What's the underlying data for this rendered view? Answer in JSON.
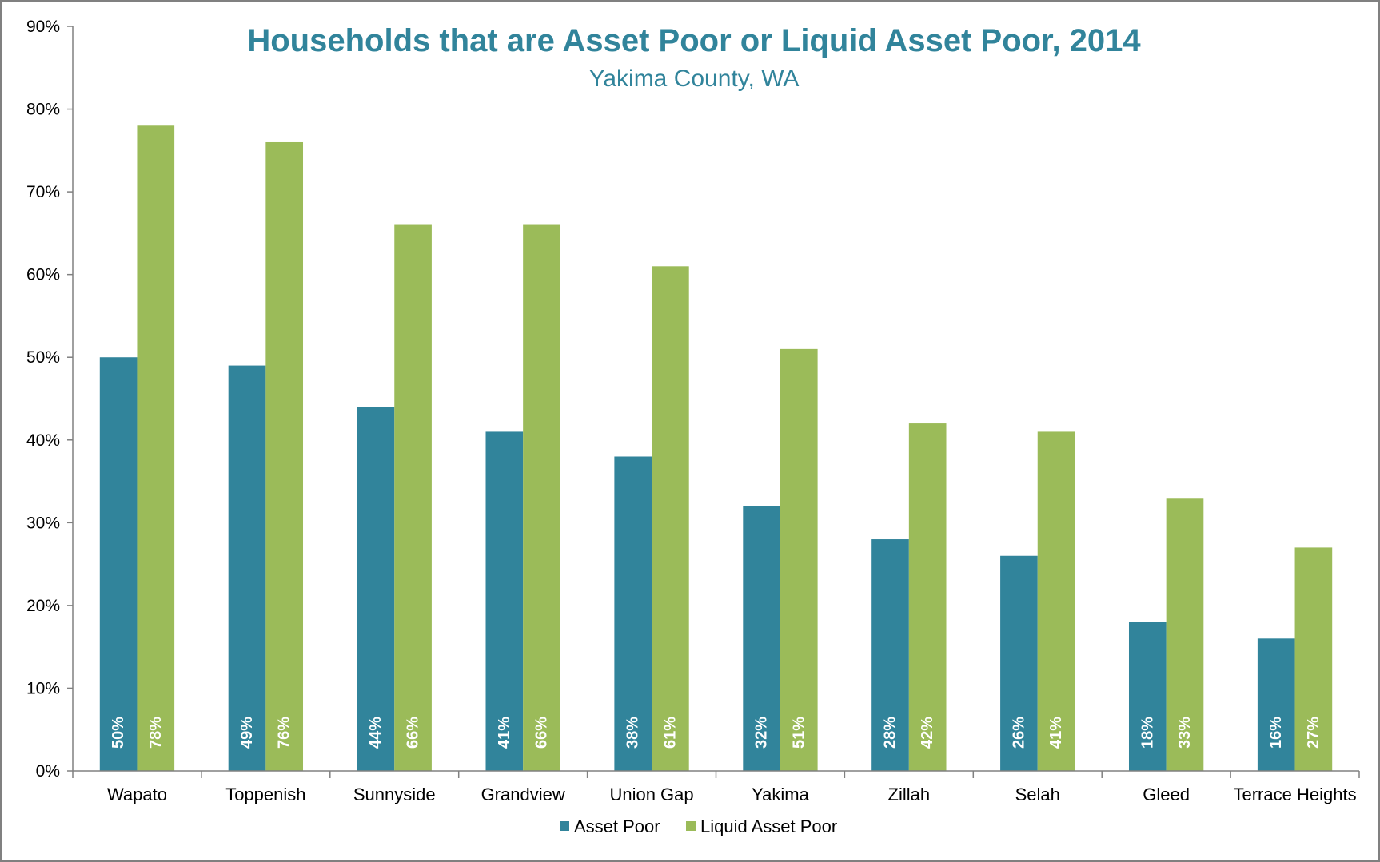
{
  "chart_data": {
    "type": "bar",
    "title": "Households that are Asset Poor or Liquid Asset Poor, 2014",
    "subtitle": "Yakima County, WA",
    "xlabel": "",
    "ylabel": "",
    "ylim": [
      0,
      90
    ],
    "yticks": [
      "0%",
      "10%",
      "20%",
      "30%",
      "40%",
      "50%",
      "60%",
      "70%",
      "80%",
      "90%"
    ],
    "categories": [
      "Wapato",
      "Toppenish",
      "Sunnyside",
      "Grandview",
      "Union Gap",
      "Yakima",
      "Zillah",
      "Selah",
      "Gleed",
      "Terrace Heights"
    ],
    "series": [
      {
        "name": "Asset Poor",
        "color": "#31849b",
        "values": [
          50,
          49,
          44,
          41,
          38,
          32,
          28,
          26,
          18,
          16
        ],
        "labels": [
          "50%",
          "49%",
          "44%",
          "41%",
          "38%",
          "32%",
          "28%",
          "26%",
          "18%",
          "16%"
        ]
      },
      {
        "name": "Liquid Asset Poor",
        "color": "#9bbb59",
        "values": [
          78,
          76,
          66,
          66,
          61,
          51,
          42,
          41,
          33,
          27
        ],
        "labels": [
          "78%",
          "76%",
          "66%",
          "66%",
          "61%",
          "51%",
          "42%",
          "41%",
          "33%",
          "27%"
        ]
      }
    ],
    "grid": false,
    "legend": "bottom"
  }
}
